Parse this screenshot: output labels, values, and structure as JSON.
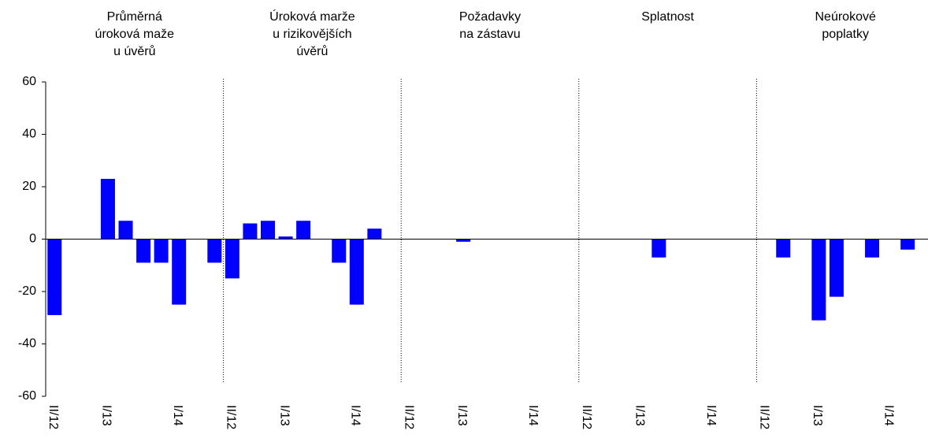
{
  "chart_data": {
    "type": "bar",
    "groups": [
      {
        "title": [
          "Průměrná",
          "úroková maže",
          "u úvěrů"
        ]
      },
      {
        "title": [
          "Úroková marže",
          "u rizikovějších",
          "úvěrů"
        ]
      },
      {
        "title": [
          "Požadavky",
          "na zástavu"
        ]
      },
      {
        "title": [
          "Splatnost"
        ]
      },
      {
        "title": [
          "Neúrokové",
          "poplatky"
        ]
      }
    ],
    "categories": [
      "II/12",
      null,
      null,
      "I/13",
      null,
      null,
      null,
      "I/14",
      null,
      null,
      "II/12",
      null,
      null,
      "I/13",
      null,
      null,
      null,
      "I/14",
      null,
      null,
      "II/12",
      null,
      null,
      "I/13",
      null,
      null,
      null,
      "I/14",
      null,
      null,
      "II/12",
      null,
      null,
      "I/13",
      null,
      null,
      null,
      "I/14",
      null,
      null,
      "II/12",
      null,
      null,
      "I/13",
      null,
      null,
      null,
      "I/14",
      null,
      null
    ],
    "values": [
      -29,
      0,
      0,
      23,
      7,
      -9,
      -9,
      -25,
      0,
      -9,
      -15,
      6,
      7,
      1,
      7,
      0,
      -9,
      -25,
      4,
      0,
      0,
      0,
      0,
      -1,
      0,
      0,
      0,
      0,
      0,
      0,
      0,
      0,
      0,
      0,
      -7,
      0,
      0,
      0,
      0,
      0,
      0,
      -7,
      0,
      -31,
      -22,
      0,
      -7,
      0,
      -4,
      0
    ],
    "color": "#0000ff",
    "ylim": [
      -60,
      60
    ],
    "yticks": [
      -60,
      -40,
      -20,
      0,
      20,
      40,
      60
    ]
  }
}
